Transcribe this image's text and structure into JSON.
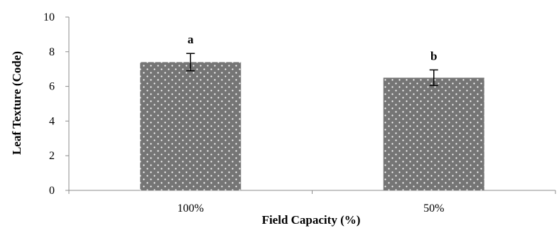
{
  "chart_data": {
    "type": "bar",
    "title": "",
    "xlabel": "Field Capacity (%)",
    "ylabel": "Leaf Texture (Code)",
    "categories": [
      "100%",
      "50%"
    ],
    "values": [
      7.4,
      6.5
    ],
    "errors": [
      0.5,
      0.45
    ],
    "significance_letters": [
      "a",
      "b"
    ],
    "ylim": [
      0,
      10
    ],
    "yticks": [
      0,
      2,
      4,
      6,
      8,
      10
    ],
    "grid": false,
    "legend": "none",
    "bar_color": "#757575",
    "bar_pattern": "white dots"
  }
}
